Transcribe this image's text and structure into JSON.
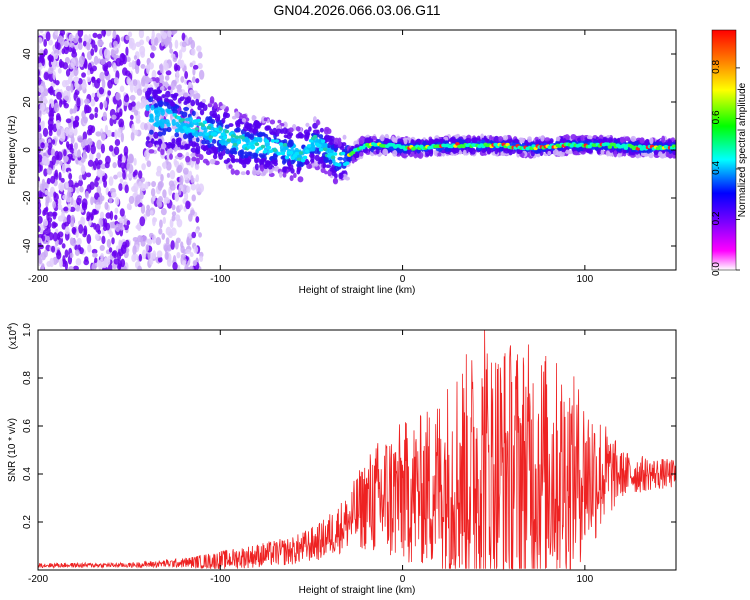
{
  "chart_data": [
    {
      "type": "heatmap",
      "title": "GN04.2026.066.03.06.G11",
      "xlabel": "Height of straight line (km)",
      "ylabel": "Frequency (Hz)",
      "xlim": [
        -200,
        150
      ],
      "ylim": [
        -50,
        50
      ],
      "xticks": [
        -200,
        -100,
        0,
        100
      ],
      "yticks": [
        -40,
        -20,
        0,
        20,
        40
      ],
      "colorbar": {
        "label": "Normalized spectral amplitude",
        "range": [
          0,
          0.95
        ],
        "ticks": [
          "0.0",
          "0.2",
          "0.4",
          "0.6",
          "0.8"
        ],
        "colors": [
          "#ffffff",
          "#ff00ff",
          "#7a00ff",
          "#0000ff",
          "#00ffff",
          "#00ff00",
          "#ffff00",
          "#ff8000",
          "#ff0000"
        ]
      },
      "ridge": {
        "x": [
          -135,
          -110,
          -90,
          -70,
          -55,
          -50,
          -45,
          -40,
          -35,
          -30,
          -25,
          -20,
          -10,
          0,
          10,
          30,
          50,
          70,
          90,
          110,
          130,
          150
        ],
        "freq": [
          14,
          9,
          3,
          1,
          -2,
          3,
          2,
          -1,
          -5,
          -3,
          0,
          2,
          2,
          1,
          1,
          2,
          2,
          1,
          2,
          2,
          1,
          1
        ],
        "note": "dominant frequency band, noisy scatter for x < -130"
      }
    },
    {
      "type": "line",
      "xlabel": "Height of straight line (km)",
      "ylabel": "SNR (10 * v/v)",
      "scale_note": "(x10",
      "scale_exp": "4",
      "scale_close": ")",
      "xlim": [
        -200,
        150
      ],
      "ylim": [
        0,
        1.0
      ],
      "xticks": [
        -200,
        -100,
        0,
        100
      ],
      "yticks": [
        "0.2",
        "0.4",
        "0.6",
        "0.8",
        "1.0"
      ],
      "color": "#ee2222",
      "envelope": {
        "x": [
          -200,
          -150,
          -120,
          -100,
          -80,
          -60,
          -45,
          -30,
          -20,
          -10,
          0,
          10,
          20,
          30,
          45,
          60,
          75,
          90,
          105,
          120,
          135,
          150
        ],
        "baseline": [
          0.02,
          0.02,
          0.03,
          0.04,
          0.06,
          0.08,
          0.12,
          0.2,
          0.28,
          0.3,
          0.32,
          0.33,
          0.36,
          0.4,
          0.42,
          0.42,
          0.42,
          0.4,
          0.4,
          0.4,
          0.4,
          0.4
        ],
        "amplitude": [
          0.01,
          0.01,
          0.02,
          0.04,
          0.05,
          0.06,
          0.08,
          0.12,
          0.2,
          0.28,
          0.3,
          0.32,
          0.38,
          0.48,
          0.55,
          0.55,
          0.52,
          0.45,
          0.3,
          0.1,
          0.07,
          0.06
        ]
      },
      "peak": {
        "x": 45,
        "y": 1.0
      }
    }
  ]
}
